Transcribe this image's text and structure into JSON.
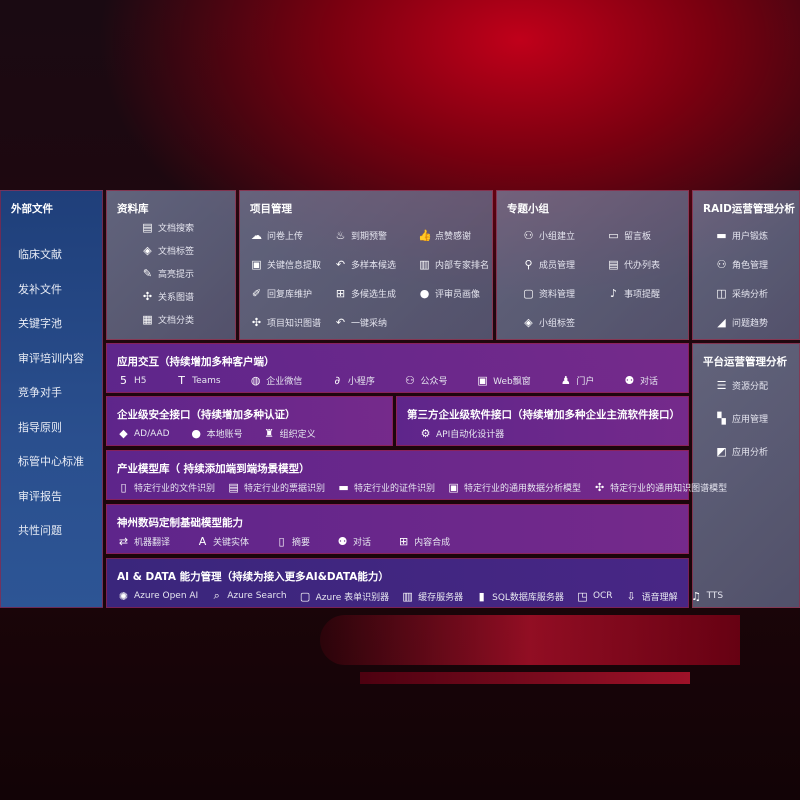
{
  "external": {
    "title": "外部文件",
    "items": [
      "临床文献",
      "发补文件",
      "关键字池",
      "审评培训内容",
      "竞争对手",
      "指导原则",
      "标管中心标准",
      "审评报告",
      "共性问题"
    ]
  },
  "library": {
    "title": "资料库",
    "items": [
      {
        "icon": "doc-search-icon",
        "label": "文档搜索"
      },
      {
        "icon": "tag-icon",
        "label": "文档标签"
      },
      {
        "icon": "pen-icon",
        "label": "高亮提示"
      },
      {
        "icon": "graph-icon",
        "label": "关系图谱"
      },
      {
        "icon": "doc-list-icon",
        "label": "文档分类"
      }
    ]
  },
  "project": {
    "title": "项目管理",
    "items": [
      {
        "icon": "upload-icon",
        "label": "问卷上传"
      },
      {
        "icon": "alarm-icon",
        "label": "到期预警"
      },
      {
        "icon": "thumbs-up-icon",
        "label": "点赞感谢"
      },
      {
        "icon": "window-icon",
        "label": "关键信息提取"
      },
      {
        "icon": "reply-icon",
        "label": "多样本候选"
      },
      {
        "icon": "ranking-icon",
        "label": "内部专家排名"
      },
      {
        "icon": "edit-icon",
        "label": "回复库维护"
      },
      {
        "icon": "puzzle-icon",
        "label": "多候选生成"
      },
      {
        "icon": "user-icon",
        "label": "评审员画像"
      },
      {
        "icon": "graph-icon",
        "label": "项目知识图谱"
      },
      {
        "icon": "reply-icon",
        "label": "一键采纳"
      }
    ]
  },
  "group": {
    "title": "专题小组",
    "items": [
      {
        "icon": "group-icon",
        "label": "小组建立"
      },
      {
        "icon": "bbs-icon",
        "label": "留言板"
      },
      {
        "icon": "user-add-icon",
        "label": "成员管理"
      },
      {
        "icon": "clipboard-icon",
        "label": "代办列表"
      },
      {
        "icon": "folder-icon",
        "label": "资料管理"
      },
      {
        "icon": "bell-icon",
        "label": "事项提醒"
      },
      {
        "icon": "tag-icon",
        "label": "小组标签"
      }
    ]
  },
  "raid": {
    "title": "RAID运营管理分析",
    "items": [
      {
        "icon": "id-card-icon",
        "label": "用户锻炼"
      },
      {
        "icon": "group-icon",
        "label": "角色管理"
      },
      {
        "icon": "qa-icon",
        "label": "采纳分析"
      },
      {
        "icon": "trend-icon",
        "label": "问题趋势"
      }
    ]
  },
  "platform": {
    "title": "平台运营管理分析",
    "items": [
      {
        "icon": "checklist-icon",
        "label": "资源分配"
      },
      {
        "icon": "apps-icon",
        "label": "应用管理"
      },
      {
        "icon": "analysis-icon",
        "label": "应用分析"
      }
    ]
  },
  "interaction": {
    "title": "应用交互（持续增加多种客户端）",
    "items": [
      {
        "icon": "html5-icon",
        "label": "H5"
      },
      {
        "icon": "teams-icon",
        "label": "Teams"
      },
      {
        "icon": "wechat-icon",
        "label": "企业微信"
      },
      {
        "icon": "mini-program-icon",
        "label": "小程序"
      },
      {
        "icon": "group-icon",
        "label": "公众号"
      },
      {
        "icon": "window-icon",
        "label": "Web飘窗"
      },
      {
        "icon": "portal-icon",
        "label": "门户"
      },
      {
        "icon": "chat-icon",
        "label": "对话"
      }
    ]
  },
  "security": {
    "title": "企业级安全接口（持续增加多种认证）",
    "items": [
      {
        "icon": "azure-ad-icon",
        "label": "AD/AAD"
      },
      {
        "icon": "user-icon",
        "label": "本地账号"
      },
      {
        "icon": "org-icon",
        "label": "组织定义"
      }
    ]
  },
  "third": {
    "title": "第三方企业级软件接口（持续增加多种企业主流软件接口）",
    "items": [
      {
        "icon": "gear-icon",
        "label": "API自动化设计器"
      }
    ]
  },
  "industry": {
    "title": "产业模型库（ 持续添加端到端场景模型）",
    "items": [
      {
        "icon": "doc-icon",
        "label": "特定行业的文件识别"
      },
      {
        "icon": "receipt-icon",
        "label": "特定行业的票据识别"
      },
      {
        "icon": "id-card-icon",
        "label": "特定行业的证件识别"
      },
      {
        "icon": "chart-icon",
        "label": "特定行业的通用数据分析模型"
      },
      {
        "icon": "graph-icon",
        "label": "特定行业的通用知识图谱模型"
      }
    ]
  },
  "base": {
    "title": "神州数码定制基础模型能力",
    "items": [
      {
        "icon": "translate-icon",
        "label": "机器翻译"
      },
      {
        "icon": "entity-icon",
        "label": "关键实体"
      },
      {
        "icon": "doc-icon",
        "label": "摘要"
      },
      {
        "icon": "chat-icon",
        "label": "对话"
      },
      {
        "icon": "puzzle-icon",
        "label": "内容合成"
      }
    ]
  },
  "ai": {
    "title": "AI & DATA 能力管理（持续为接入更多AI&DATA能力）",
    "items": [
      {
        "icon": "openai-icon",
        "label": "Azure Open AI"
      },
      {
        "icon": "search-icon",
        "label": "Azure Search"
      },
      {
        "icon": "form-icon",
        "label": "Azure 表单识别器"
      },
      {
        "icon": "cache-icon",
        "label": "缓存服务器"
      },
      {
        "icon": "database-icon",
        "label": "SQL数据库服务器"
      },
      {
        "icon": "ocr-icon",
        "label": "OCR"
      },
      {
        "icon": "speech-icon",
        "label": "语音理解"
      },
      {
        "icon": "tts-icon",
        "label": "TTS"
      }
    ]
  }
}
